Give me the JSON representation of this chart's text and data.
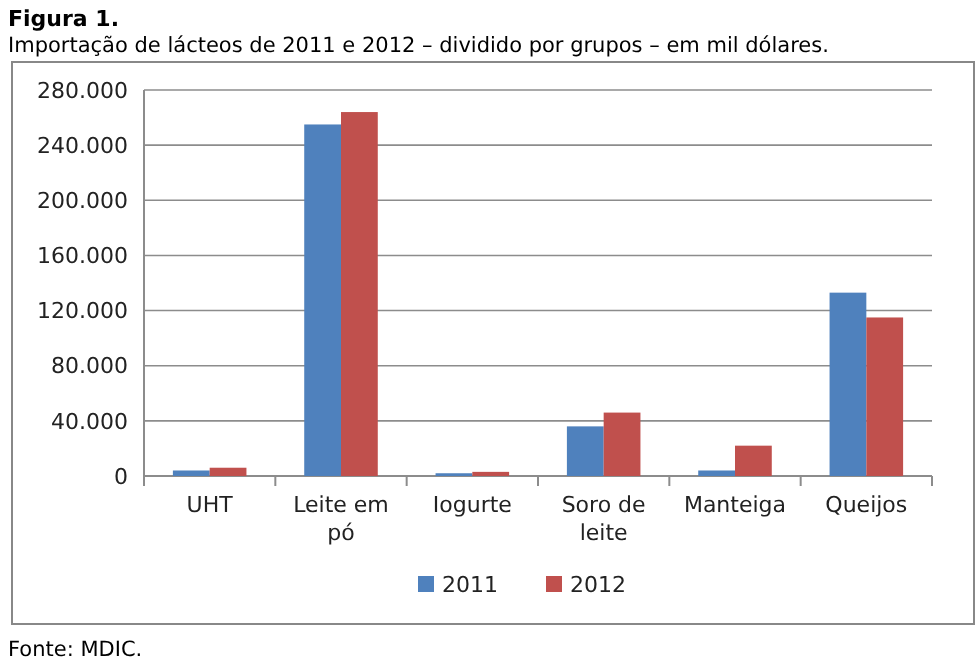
{
  "chart_data": {
    "type": "bar",
    "title": "Figura 1.",
    "subtitle": "Importação de lácteos de 2011 e 2012 – dividido por grupos – em mil dólares.",
    "categories": [
      "UHT",
      "Leite em pó",
      "Iogurte",
      "Soro de leite",
      "Manteiga",
      "Queijos"
    ],
    "series": [
      {
        "name": "2011",
        "color": "#4f81bd",
        "values": [
          4000,
          255000,
          2000,
          36000,
          4000,
          133000
        ]
      },
      {
        "name": "2012",
        "color": "#c0504d",
        "values": [
          6000,
          264000,
          3000,
          46000,
          22000,
          115000
        ]
      }
    ],
    "ylim": [
      0,
      280000
    ],
    "yticks": [
      {
        "value": 0,
        "label": "0"
      },
      {
        "value": 40000,
        "label": "40.000"
      },
      {
        "value": 80000,
        "label": "80.000"
      },
      {
        "value": 120000,
        "label": "120.000"
      },
      {
        "value": 160000,
        "label": "160.000"
      },
      {
        "value": 200000,
        "label": "200.000"
      },
      {
        "value": 240000,
        "label": "240.000"
      },
      {
        "value": 280000,
        "label": "280.000"
      }
    ],
    "grid": "y",
    "legend": "bottom",
    "annotations": [
      "Fonte: MDIC."
    ]
  }
}
